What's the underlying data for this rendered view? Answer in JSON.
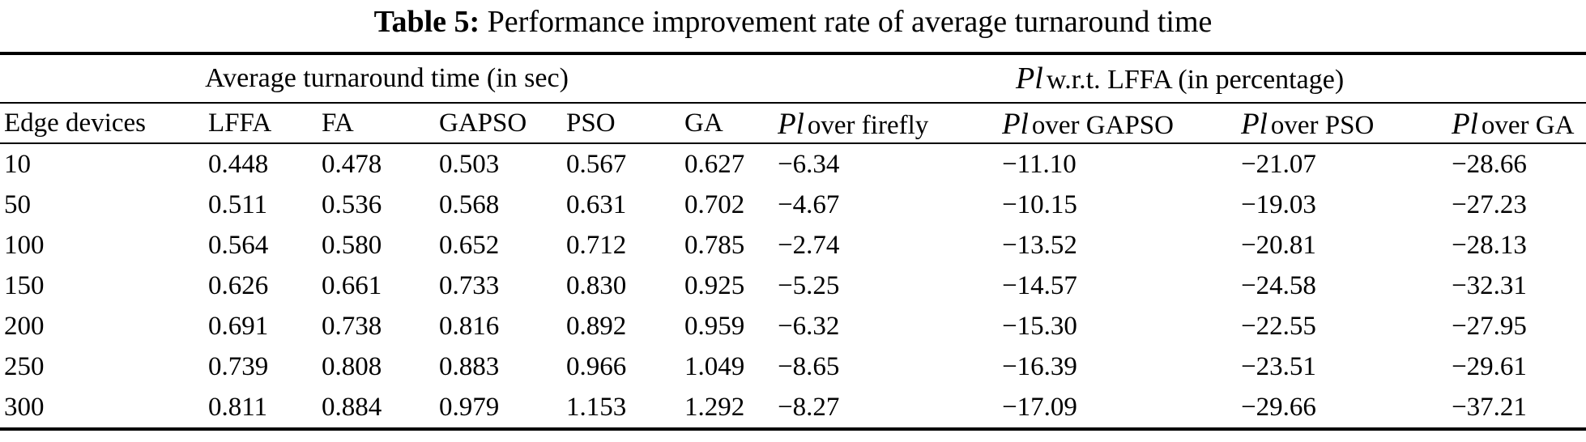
{
  "title": {
    "label": "Table 5:",
    "text": "Performance improvement rate of average turnaround time"
  },
  "colors": {
    "text": "#000000",
    "background": "#ffffff",
    "rule": "#000000"
  },
  "table": {
    "group_headers": [
      {
        "text": "Average turnaround time (in sec)",
        "colspan": 6
      },
      {
        "symbol": "Pl",
        "text": "w.r.t. LFFA (in percentage)",
        "colspan": 4
      }
    ],
    "columns": [
      {
        "label": "Edge devices"
      },
      {
        "label": "LFFA"
      },
      {
        "label": "FA"
      },
      {
        "label": "GAPSO"
      },
      {
        "label": "PSO"
      },
      {
        "label": "GA"
      },
      {
        "symbol": "Pl",
        "label": "over firefly"
      },
      {
        "symbol": "Pl",
        "label": "over GAPSO"
      },
      {
        "symbol": "Pl",
        "label": "over PSO"
      },
      {
        "symbol": "Pl",
        "label": "over GA"
      }
    ],
    "rows": [
      [
        "10",
        "0.448",
        "0.478",
        "0.503",
        "0.567",
        "0.627",
        "−6.34",
        "−11.10",
        "−21.07",
        "−28.66"
      ],
      [
        "50",
        "0.511",
        "0.536",
        "0.568",
        "0.631",
        "0.702",
        "−4.67",
        "−10.15",
        "−19.03",
        "−27.23"
      ],
      [
        "100",
        "0.564",
        "0.580",
        "0.652",
        "0.712",
        "0.785",
        "−2.74",
        "−13.52",
        "−20.81",
        "−28.13"
      ],
      [
        "150",
        "0.626",
        "0.661",
        "0.733",
        "0.830",
        "0.925",
        "−5.25",
        "−14.57",
        "−24.58",
        "−32.31"
      ],
      [
        "200",
        "0.691",
        "0.738",
        "0.816",
        "0.892",
        "0.959",
        "−6.32",
        "−15.30",
        "−22.55",
        "−27.95"
      ],
      [
        "250",
        "0.739",
        "0.808",
        "0.883",
        "0.966",
        "1.049",
        "−8.65",
        "−16.39",
        "−23.51",
        "−29.61"
      ],
      [
        "300",
        "0.811",
        "0.884",
        "0.979",
        "1.153",
        "1.292",
        "−8.27",
        "−17.09",
        "−29.66",
        "−37.21"
      ]
    ]
  }
}
